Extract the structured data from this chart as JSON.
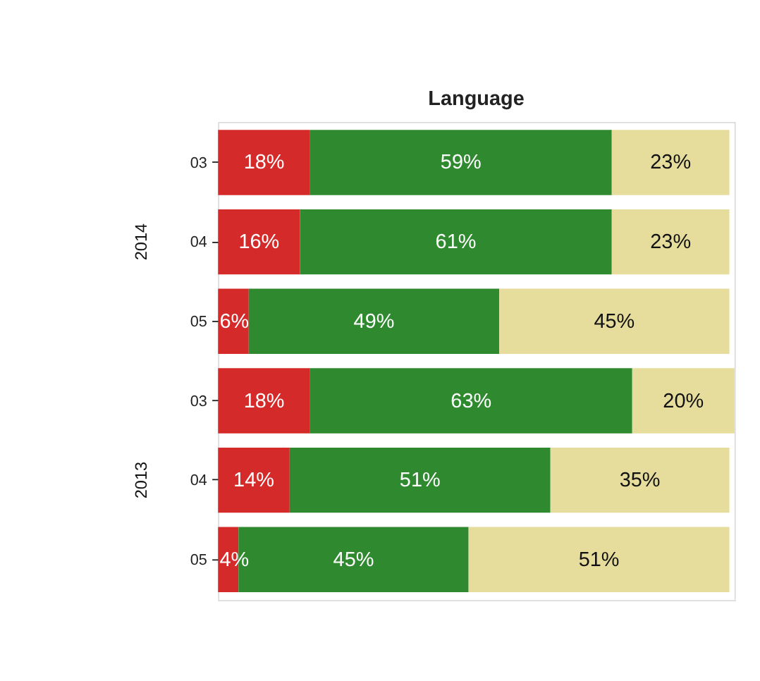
{
  "chart_data": {
    "type": "bar",
    "orientation": "horizontal",
    "stacked": true,
    "title": "Language",
    "categories": [
      "03",
      "04",
      "05",
      "03",
      "04",
      "05"
    ],
    "series": [
      {
        "color": "#d42a2a",
        "values": [
          18,
          16,
          6,
          18,
          14,
          4
        ],
        "value_labels": [
          "18%",
          "16%",
          "6%",
          "18%",
          "14%",
          "4%"
        ]
      },
      {
        "color": "#2f8a2f",
        "values": [
          59,
          61,
          49,
          63,
          51,
          45
        ],
        "value_labels": [
          "59%",
          "61%",
          "49%",
          "63%",
          "51%",
          "45%"
        ]
      },
      {
        "color": "#e6dc9c",
        "values": [
          23,
          23,
          45,
          20,
          35,
          51
        ],
        "value_labels": [
          "23%",
          "23%",
          "45%",
          "20%",
          "35%",
          "51%"
        ]
      }
    ],
    "annotations": [
      "2014",
      "2013"
    ],
    "grid": false
  }
}
